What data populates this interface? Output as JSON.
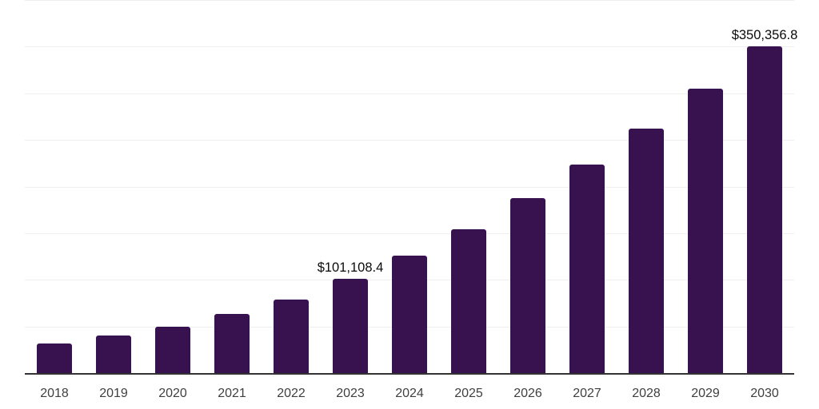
{
  "chart_data": {
    "type": "bar",
    "title": "",
    "xlabel": "",
    "ylabel": "",
    "categories": [
      "2018",
      "2019",
      "2020",
      "2021",
      "2022",
      "2023",
      "2024",
      "2025",
      "2026",
      "2027",
      "2028",
      "2029",
      "2030"
    ],
    "values": [
      31900,
      40200,
      49600,
      63300,
      78900,
      101108.4,
      125700,
      154200,
      187200,
      223200,
      262500,
      304600,
      350356.8
    ],
    "data_labels": [
      "",
      "",
      "",
      "",
      "",
      "$101,108.4",
      "",
      "",
      "",
      "",
      "",
      "",
      "$350,356.8"
    ],
    "ylim": [
      0,
      400000
    ],
    "gridline_interval": 50000,
    "grid": "horizontal-only",
    "legend": "none",
    "y_axis_tick_labels_visible": false
  },
  "style": {
    "bar_color": "#38114F",
    "grid_color": "#EFEFEF",
    "axis_color": "#333333",
    "year_label_color": "#3F3F3F",
    "data_label_color": "#0A0A0A",
    "background": "#FFFFFF"
  }
}
